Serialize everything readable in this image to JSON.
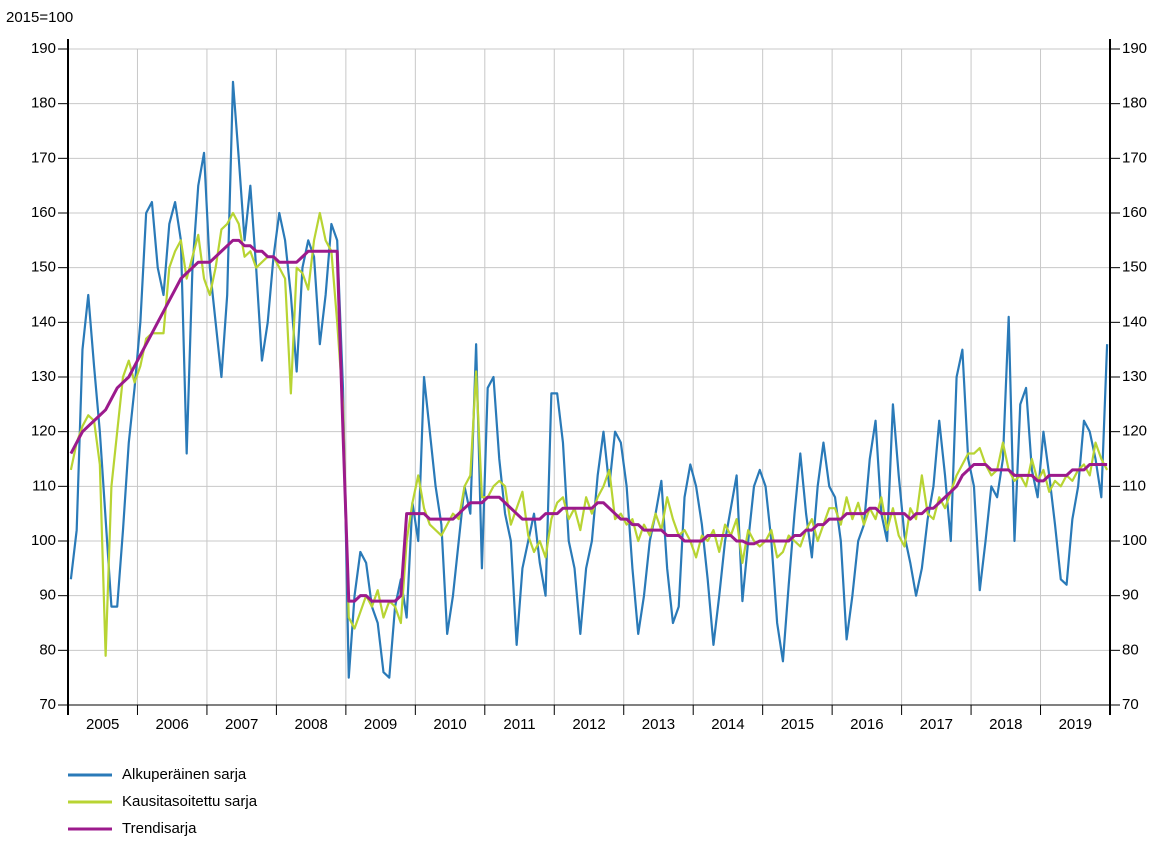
{
  "chart_data": {
    "type": "line",
    "subtitle": "2015=100",
    "categories": [
      "2005",
      "2006",
      "2007",
      "2008",
      "2009",
      "2010",
      "2011",
      "2012",
      "2013",
      "2014",
      "2015",
      "2016",
      "2017",
      "2018",
      "2019"
    ],
    "ylim": [
      70,
      190
    ],
    "yticks": [
      70,
      80,
      90,
      100,
      110,
      120,
      130,
      140,
      150,
      160,
      170,
      180,
      190
    ],
    "y2lim": [
      70,
      190
    ],
    "y2ticks": [
      70,
      80,
      90,
      100,
      110,
      120,
      130,
      140,
      150,
      160,
      170,
      180,
      190
    ],
    "grid": true,
    "legend": "bottom-left",
    "series": [
      {
        "name": "Alkuperäinen sarja",
        "color": "#2a7ab8",
        "values": [
          [
            93,
            102,
            135,
            145,
            132,
            120,
            104,
            88,
            88,
            102,
            118,
            128
          ],
          [
            140,
            160,
            162,
            150,
            145,
            158,
            162,
            155,
            116,
            150,
            165,
            171
          ],
          [
            150,
            140,
            130,
            145,
            184,
            170,
            155,
            165,
            150,
            133,
            140,
            152
          ],
          [
            160,
            155,
            145,
            131,
            150,
            155,
            152,
            136,
            145,
            158,
            155,
            128
          ],
          [
            75,
            90,
            98,
            96,
            88,
            85,
            76,
            75,
            88,
            93,
            86,
            107
          ],
          [
            100,
            130,
            120,
            110,
            103,
            83,
            90,
            100,
            110,
            105,
            136,
            95
          ],
          [
            128,
            130,
            115,
            105,
            100,
            81,
            95,
            100,
            105,
            96,
            90,
            127
          ],
          [
            127,
            118,
            100,
            95,
            83,
            95,
            100,
            112,
            120,
            110,
            120,
            118
          ],
          [
            110,
            95,
            83,
            90,
            100,
            105,
            111,
            95,
            85,
            88,
            108,
            114
          ],
          [
            110,
            103,
            93,
            81,
            90,
            100,
            106,
            112,
            89,
            100,
            110,
            113
          ],
          [
            110,
            100,
            85,
            78,
            92,
            105,
            116,
            105,
            97,
            110,
            118,
            110
          ],
          [
            108,
            100,
            82,
            90,
            100,
            103,
            115,
            122,
            105,
            100,
            125,
            112
          ],
          [
            101,
            96,
            90,
            95,
            104,
            110,
            122,
            112,
            100,
            130,
            135,
            115
          ],
          [
            110,
            91,
            100,
            110,
            108,
            115,
            141,
            100,
            125,
            128,
            113,
            108
          ],
          [
            120,
            112,
            103,
            93,
            92,
            104,
            110,
            122,
            120,
            115,
            108,
            136
          ]
        ]
      },
      {
        "name": "Kausitasoitettu sarja",
        "color": "#b8d433",
        "values": [
          [
            113,
            118,
            121,
            123,
            122,
            114,
            79,
            110,
            120,
            130,
            133,
            129
          ],
          [
            132,
            137,
            138,
            138,
            138,
            150,
            153,
            155,
            148,
            152,
            156,
            148
          ],
          [
            145,
            150,
            157,
            158,
            160,
            158,
            152,
            153,
            150,
            151,
            152,
            152
          ],
          [
            150,
            148,
            127,
            150,
            149,
            146,
            155,
            160,
            155,
            153,
            140,
            125
          ],
          [
            86,
            84,
            87,
            90,
            88,
            91,
            86,
            89,
            88,
            85,
            100,
            107
          ],
          [
            112,
            106,
            103,
            102,
            101,
            103,
            105,
            104,
            110,
            112,
            131,
            108
          ],
          [
            108,
            110,
            111,
            110,
            103,
            106,
            109,
            101,
            98,
            100,
            97,
            104
          ],
          [
            107,
            108,
            104,
            106,
            102,
            108,
            105,
            108,
            110,
            113,
            104,
            105
          ],
          [
            103,
            104,
            100,
            103,
            101,
            105,
            102,
            108,
            104,
            101,
            102,
            100
          ],
          [
            97,
            101,
            100,
            102,
            98,
            103,
            101,
            104,
            96,
            102,
            100,
            99
          ],
          [
            100,
            102,
            97,
            98,
            101,
            100,
            99,
            102,
            104,
            100,
            103,
            106
          ],
          [
            106,
            103,
            108,
            104,
            107,
            103,
            106,
            104,
            108,
            102,
            106,
            101
          ],
          [
            99,
            106,
            104,
            112,
            105,
            104,
            108,
            106,
            109,
            112,
            114,
            116
          ],
          [
            116,
            117,
            114,
            112,
            113,
            118,
            113,
            111,
            112,
            110,
            115,
            111
          ],
          [
            113,
            109,
            111,
            110,
            112,
            111,
            113,
            114,
            112,
            118,
            115,
            113
          ]
        ]
      },
      {
        "name": "Trendisarja",
        "color": "#9c1a8c",
        "values": [
          [
            116,
            118,
            120,
            121,
            122,
            123,
            124,
            126,
            128,
            129,
            130,
            132
          ],
          [
            134,
            136,
            138,
            140,
            142,
            144,
            146,
            148,
            149,
            150,
            151,
            151
          ],
          [
            151,
            152,
            153,
            154,
            155,
            155,
            154,
            154,
            153,
            153,
            152,
            152
          ],
          [
            151,
            151,
            151,
            151,
            152,
            153,
            153,
            153,
            153,
            153,
            153,
            120
          ],
          [
            89,
            89,
            90,
            90,
            89,
            89,
            89,
            89,
            89,
            90,
            105,
            105
          ],
          [
            105,
            105,
            104,
            104,
            104,
            104,
            104,
            105,
            106,
            107,
            107,
            107
          ],
          [
            108,
            108,
            108,
            107,
            106,
            105,
            104,
            104,
            104,
            104,
            105,
            105
          ],
          [
            105,
            106,
            106,
            106,
            106,
            106,
            106,
            107,
            107,
            106,
            105,
            104
          ],
          [
            104,
            103,
            103,
            102,
            102,
            102,
            102,
            101,
            101,
            101,
            100,
            100
          ],
          [
            100,
            100,
            101,
            101,
            101,
            101,
            101,
            100,
            100,
            99.5,
            99.5,
            100
          ],
          [
            100,
            100,
            100,
            100,
            100,
            101,
            101,
            102,
            102,
            103,
            103,
            104
          ],
          [
            104,
            104,
            105,
            105,
            105,
            105,
            106,
            106,
            105,
            105,
            105,
            105
          ],
          [
            105,
            104,
            105,
            105,
            106,
            106,
            107,
            108,
            109,
            110,
            112,
            113
          ],
          [
            114,
            114,
            114,
            113,
            113,
            113,
            113,
            112,
            112,
            112,
            112,
            111
          ],
          [
            111,
            112,
            112,
            112,
            112,
            113,
            113,
            113,
            114,
            114,
            114,
            114
          ]
        ]
      }
    ]
  }
}
